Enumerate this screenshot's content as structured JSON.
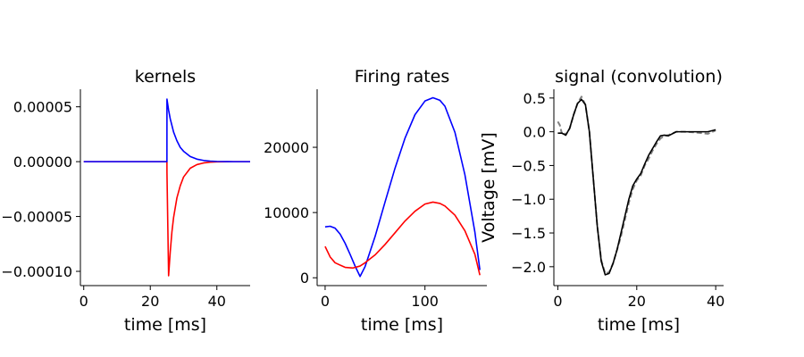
{
  "chart_data": [
    {
      "type": "line",
      "title": "kernels",
      "xlabel": "time [ms]",
      "ylabel": "",
      "xlim": [
        -1,
        50
      ],
      "ylim": [
        -0.000113,
        6.6e-05
      ],
      "xticks": [
        0,
        20,
        40
      ],
      "xtick_labels": [
        "0",
        "20",
        "40"
      ],
      "yticks": [
        -0.0001,
        -5e-05,
        0.0,
        5e-05
      ],
      "ytick_labels": [
        "−0.00010",
        "−0.00005",
        "0.00000",
        "0.00005"
      ],
      "series": [
        {
          "color": "#ff0000",
          "x": [
            0,
            25,
            25.01,
            25.5,
            26,
            26.5,
            27,
            28,
            29,
            30,
            32,
            34,
            36,
            38,
            40,
            45,
            50
          ],
          "y": [
            0,
            0,
            -1e-05,
            -0.000104,
            -8.2e-05,
            -6.4e-05,
            -5.1e-05,
            -3.3e-05,
            -2.2e-05,
            -1.4e-05,
            -6e-06,
            -2.7e-06,
            -1.2e-06,
            -5e-07,
            -2e-07,
            0,
            0
          ]
        },
        {
          "color": "#0000ff",
          "x": [
            0,
            25,
            25.01,
            25.5,
            26,
            27,
            28,
            29,
            30,
            32,
            34,
            36,
            38,
            40,
            45,
            50
          ],
          "y": [
            0,
            0,
            5.7e-05,
            4.7e-05,
            3.9e-05,
            2.7e-05,
            1.9e-05,
            1.3e-05,
            9.5e-06,
            4.7e-06,
            2.3e-06,
            1.1e-06,
            5e-07,
            2e-07,
            0,
            0
          ]
        }
      ]
    },
    {
      "type": "line",
      "title": "Firing rates",
      "xlabel": "time [ms]",
      "ylabel": "",
      "xlim": [
        -8,
        162
      ],
      "ylim": [
        -1200,
        28900
      ],
      "xticks": [
        0,
        100
      ],
      "xtick_labels": [
        "0",
        "100"
      ],
      "yticks": [
        0,
        10000,
        20000
      ],
      "ytick_labels": [
        "0",
        "10000",
        "20000"
      ],
      "series": [
        {
          "color": "#0000ff",
          "x": [
            0,
            5,
            10,
            15,
            20,
            25,
            30,
            35,
            40,
            50,
            60,
            70,
            80,
            90,
            100,
            108,
            115,
            120,
            130,
            140,
            150,
            155
          ],
          "y": [
            7800,
            7900,
            7600,
            6700,
            5300,
            3600,
            1800,
            200,
            1700,
            6300,
            11600,
            16800,
            21400,
            25000,
            27100,
            27600,
            27200,
            26300,
            22300,
            15800,
            7000,
            1200
          ]
        },
        {
          "color": "#ff0000",
          "x": [
            0,
            5,
            10,
            20,
            28,
            35,
            40,
            50,
            60,
            70,
            80,
            90,
            100,
            108,
            115,
            120,
            130,
            140,
            150,
            155
          ],
          "y": [
            4800,
            3200,
            2300,
            1600,
            1500,
            1800,
            2300,
            3500,
            5100,
            6900,
            8700,
            10200,
            11300,
            11600,
            11400,
            11000,
            9600,
            7200,
            3600,
            400
          ]
        }
      ]
    },
    {
      "type": "line",
      "title": "signal (convolution)",
      "xlabel": "time [ms]",
      "ylabel": "Voltage [mV]",
      "xlim": [
        -1,
        42
      ],
      "ylim": [
        -2.28,
        0.63
      ],
      "xticks": [
        0,
        20,
        40
      ],
      "xtick_labels": [
        "0",
        "20",
        "40"
      ],
      "yticks": [
        -2.0,
        -1.5,
        -1.0,
        -0.5,
        0.0,
        0.5
      ],
      "ytick_labels": [
        "−2.0",
        "−1.5",
        "−1.0",
        "−0.5",
        "0.0",
        "0.5"
      ],
      "series": [
        {
          "color": "#808080",
          "dashed": true,
          "x": [
            0,
            0.5,
            1,
            1.5,
            2,
            3,
            4,
            5,
            6,
            7,
            8,
            9,
            10,
            11,
            12,
            13,
            14,
            15,
            16,
            17,
            18,
            19,
            20,
            21,
            22,
            23,
            24,
            25,
            26,
            27,
            28,
            30,
            32,
            35,
            38,
            40
          ],
          "y": [
            0.15,
            0.1,
            -0.02,
            0.0,
            -0.05,
            0.05,
            0.25,
            0.42,
            0.52,
            0.4,
            0.0,
            -0.7,
            -1.4,
            -1.9,
            -2.1,
            -2.08,
            -1.95,
            -1.75,
            -1.55,
            -1.3,
            -1.05,
            -0.85,
            -0.72,
            -0.65,
            -0.5,
            -0.4,
            -0.28,
            -0.18,
            -0.1,
            -0.06,
            -0.05,
            0.0,
            0.0,
            -0.01,
            -0.03,
            0.02
          ]
        },
        {
          "color": "#000000",
          "x": [
            0,
            1,
            2,
            3,
            4,
            5,
            6,
            7,
            8,
            9,
            10,
            11,
            12,
            13,
            14,
            15,
            16,
            17,
            18,
            19,
            20,
            21,
            22,
            23,
            24,
            25,
            26,
            27,
            28,
            30,
            32,
            35,
            38,
            40
          ],
          "y": [
            -0.02,
            -0.02,
            -0.05,
            0.05,
            0.25,
            0.42,
            0.48,
            0.4,
            0.0,
            -0.7,
            -1.4,
            -1.92,
            -2.12,
            -2.1,
            -1.95,
            -1.75,
            -1.5,
            -1.25,
            -1.0,
            -0.8,
            -0.7,
            -0.62,
            -0.48,
            -0.35,
            -0.25,
            -0.15,
            -0.06,
            -0.05,
            -0.06,
            0.0,
            0.0,
            0.0,
            0.0,
            0.03
          ]
        }
      ]
    }
  ]
}
